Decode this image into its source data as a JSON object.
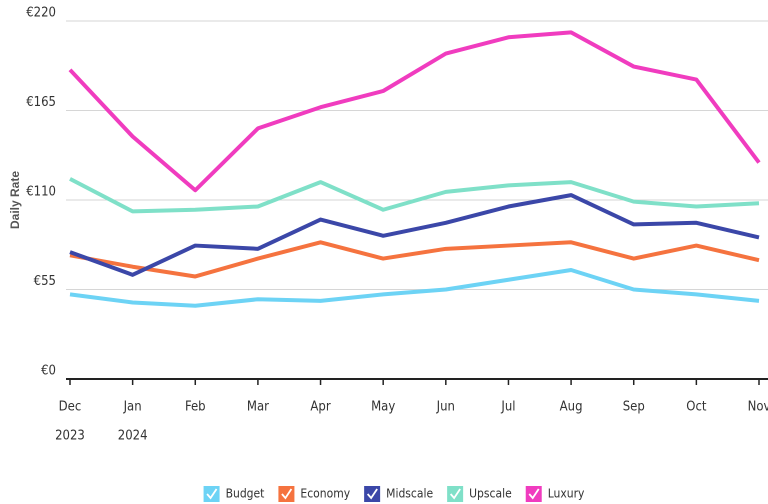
{
  "chart_data": {
    "type": "line",
    "y_label": "Daily Rate",
    "categories": [
      "Dec",
      "Jan",
      "Feb",
      "Mar",
      "Apr",
      "May",
      "Jun",
      "Jul",
      "Aug",
      "Sep",
      "Oct",
      "Nov"
    ],
    "category_years": [
      "2023",
      "2024",
      null,
      null,
      null,
      null,
      null,
      null,
      null,
      null,
      null,
      null
    ],
    "ylim": [
      0,
      220
    ],
    "yticks": [
      {
        "value": 0,
        "label": "€0"
      },
      {
        "value": 55,
        "label": "€55"
      },
      {
        "value": 110,
        "label": "€110"
      },
      {
        "value": 165,
        "label": "€165"
      },
      {
        "value": 220,
        "label": "€220"
      }
    ],
    "grid": true,
    "legend": "bottom",
    "series": [
      {
        "name": "Budget",
        "color": "#6dd3f5",
        "values": [
          52,
          47,
          45,
          49,
          48,
          52,
          55,
          61,
          67,
          55,
          52,
          48
        ]
      },
      {
        "name": "Economy",
        "color": "#f5733f",
        "values": [
          76,
          69,
          63,
          74,
          84,
          74,
          80,
          82,
          84,
          74,
          82,
          73
        ]
      },
      {
        "name": "Midscale",
        "color": "#3b47a8",
        "values": [
          78,
          64,
          82,
          80,
          98,
          88,
          96,
          106,
          113,
          95,
          96,
          87
        ]
      },
      {
        "name": "Upscale",
        "color": "#7fe0c8",
        "values": [
          123,
          103,
          104,
          106,
          121,
          104,
          115,
          119,
          121,
          109,
          106,
          108
        ]
      },
      {
        "name": "Luxury",
        "color": "#f03cbf",
        "values": [
          190,
          149,
          116,
          154,
          167,
          177,
          200,
          210,
          213,
          192,
          184,
          133
        ]
      }
    ]
  }
}
